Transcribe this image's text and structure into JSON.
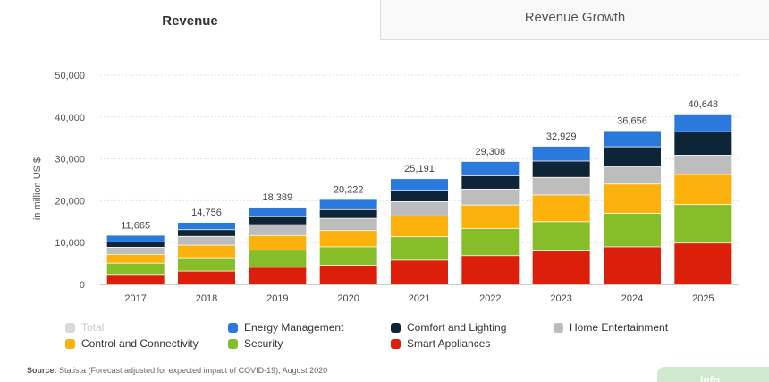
{
  "tabs": {
    "active": "Revenue",
    "inactive": "Revenue Growth"
  },
  "chart_data": {
    "type": "bar",
    "stacked": true,
    "categories": [
      "2017",
      "2018",
      "2019",
      "2020",
      "2021",
      "2022",
      "2023",
      "2024",
      "2025"
    ],
    "ylabel": "in million US $",
    "ylim": [
      0,
      50000
    ],
    "yticks": [
      "0",
      "10,000",
      "20,000",
      "30,000",
      "40,000",
      "50,000"
    ],
    "grid": true,
    "legend_position": "bottom",
    "totals": [
      11665,
      14756,
      18389,
      20222,
      25191,
      29308,
      32929,
      36656,
      40648
    ],
    "total_labels": [
      "11,665",
      "14,756",
      "18,389",
      "20,222",
      "25,191",
      "29,308",
      "32,929",
      "36,656",
      "40,648"
    ],
    "series": [
      {
        "name": "Smart Appliances",
        "color": "#db1f0a",
        "values": [
          2300,
          3100,
          4000,
          4500,
          5700,
          6800,
          7900,
          8900,
          9800
        ]
      },
      {
        "name": "Security",
        "color": "#86be2a",
        "values": [
          2700,
          3200,
          4100,
          4400,
          5600,
          6500,
          7000,
          8000,
          9200
        ]
      },
      {
        "name": "Control and Connectivity",
        "color": "#fdb10d",
        "values": [
          2100,
          3000,
          3500,
          3900,
          5000,
          5600,
          6400,
          7000,
          7200
        ]
      },
      {
        "name": "Home Entertainment",
        "color": "#bdbdbd",
        "values": [
          1700,
          2100,
          2600,
          2900,
          3400,
          3800,
          4200,
          4200,
          4600
        ]
      },
      {
        "name": "Comfort and Lighting",
        "color": "#0e2537",
        "values": [
          1300,
          1600,
          1900,
          2100,
          2700,
          3200,
          3900,
          4700,
          5600
        ]
      },
      {
        "name": "Energy Management",
        "color": "#2a79dd",
        "values": [
          1565,
          1756,
          2289,
          2422,
          2791,
          3408,
          3529,
          3856,
          4248
        ]
      }
    ]
  },
  "legend": [
    {
      "label": "Total",
      "color": "#d9d9d9",
      "muted": true
    },
    {
      "label": "Energy Management",
      "color": "#2a79dd"
    },
    {
      "label": "Comfort and Lighting",
      "color": "#0e2537"
    },
    {
      "label": "Home Entertainment",
      "color": "#bdbdbd"
    },
    {
      "label": "Control and Connectivity",
      "color": "#fdb10d"
    },
    {
      "label": "Security",
      "color": "#86be2a"
    },
    {
      "label": "Smart Appliances",
      "color": "#db1f0a"
    }
  ],
  "source": {
    "label": "Source:",
    "text": "Statista (Forecast adjusted for expected impact of COVID-19), August 2020"
  },
  "info_button": {
    "label": "Info"
  }
}
